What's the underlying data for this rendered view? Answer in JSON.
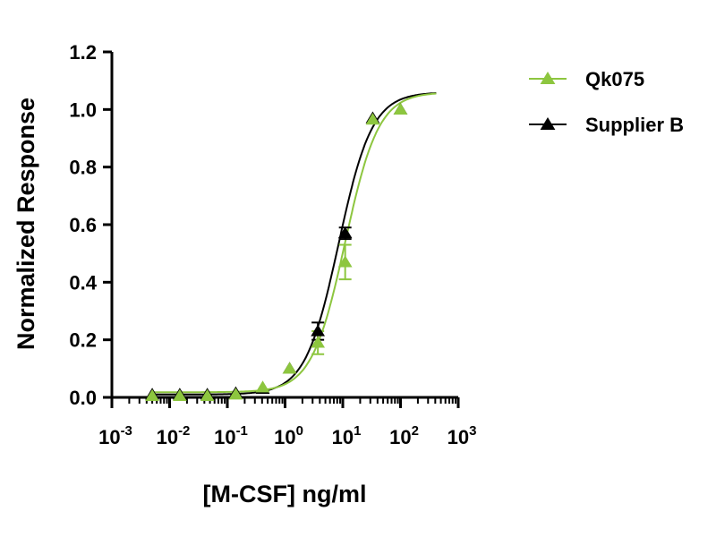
{
  "chart_data": {
    "type": "scatter",
    "xlabel": "[M-CSF] ng/ml",
    "ylabel": "Normalized Response",
    "x_scale": "log",
    "xlim": [
      0.001,
      1000
    ],
    "ylim": [
      0,
      1.2
    ],
    "x_ticks": [
      {
        "base": "10",
        "exp": "-3",
        "value": 0.001
      },
      {
        "base": "10",
        "exp": "-2",
        "value": 0.01
      },
      {
        "base": "10",
        "exp": "-1",
        "value": 0.1
      },
      {
        "base": "10",
        "exp": "0",
        "value": 1
      },
      {
        "base": "10",
        "exp": "1",
        "value": 10
      },
      {
        "base": "10",
        "exp": "2",
        "value": 100
      },
      {
        "base": "10",
        "exp": "3",
        "value": 1000
      }
    ],
    "y_ticks": [
      {
        "label": "0.0",
        "value": 0
      },
      {
        "label": "0.2",
        "value": 0.2
      },
      {
        "label": "0.4",
        "value": 0.4
      },
      {
        "label": "0.6",
        "value": 0.6
      },
      {
        "label": "0.8",
        "value": 0.8
      },
      {
        "label": "1.0",
        "value": 1.0
      },
      {
        "label": "1.2",
        "value": 1.2
      }
    ],
    "grid": false,
    "legend_position": "top-right",
    "series": [
      {
        "name": "Supplier B",
        "color": "#000000",
        "marker": "triangle",
        "x": [
          0.005,
          0.015,
          0.045,
          0.14,
          0.41,
          1.2,
          3.7,
          11,
          33,
          100
        ],
        "y": [
          0.01,
          0.01,
          0.01,
          0.015,
          0.03,
          0.1,
          0.23,
          0.57,
          0.97,
          1.0
        ],
        "err": [
          0,
          0,
          0,
          0,
          0,
          0,
          0.03,
          0.02,
          0,
          0
        ],
        "fit": {
          "bottom": 0.01,
          "top": 1.06,
          "ec50": 8.5,
          "hill": 1.5
        }
      },
      {
        "name": "Qk075",
        "color": "#8dc63f",
        "marker": "triangle",
        "x": [
          0.005,
          0.015,
          0.045,
          0.14,
          0.41,
          1.2,
          3.7,
          11,
          33,
          100
        ],
        "y": [
          0.005,
          0.005,
          0.005,
          0.01,
          0.035,
          0.1,
          0.19,
          0.47,
          0.965,
          1.0
        ],
        "err": [
          0,
          0,
          0,
          0,
          0,
          0,
          0.04,
          0.06,
          0,
          0
        ],
        "fit": {
          "bottom": 0.018,
          "top": 1.06,
          "ec50": 11,
          "hill": 1.5
        }
      }
    ]
  }
}
